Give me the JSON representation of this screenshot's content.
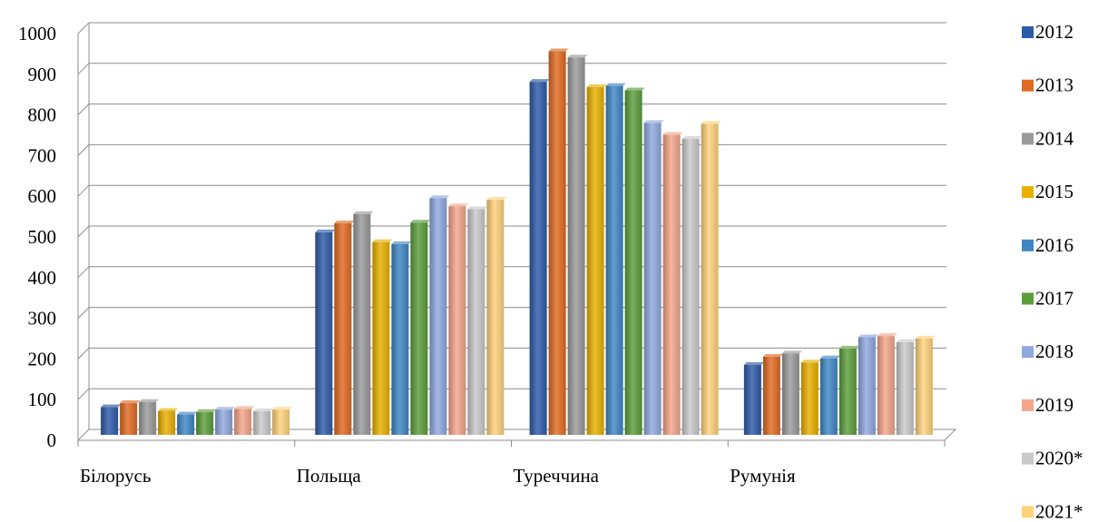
{
  "chart_data": {
    "type": "bar",
    "categories": [
      "Білорусь",
      "Польща",
      "Туреччина",
      "Румунія"
    ],
    "ylim": [
      0,
      1000
    ],
    "yticks": [
      0,
      100,
      200,
      300,
      400,
      500,
      600,
      700,
      800,
      900,
      1000
    ],
    "grid": true,
    "legend_position": "right",
    "series": [
      {
        "name": "2012",
        "color": "#2E5AA8",
        "values": [
          68,
          498,
          868,
          172
        ]
      },
      {
        "name": "2013",
        "color": "#E06A22",
        "values": [
          78,
          520,
          943,
          192
        ]
      },
      {
        "name": "2014",
        "color": "#9A9A9A",
        "values": [
          81,
          543,
          928,
          200
        ]
      },
      {
        "name": "2015",
        "color": "#E8B000",
        "values": [
          59,
          474,
          855,
          178
        ]
      },
      {
        "name": "2016",
        "color": "#3E86C4",
        "values": [
          50,
          469,
          858,
          188
        ]
      },
      {
        "name": "2017",
        "color": "#5B9E3B",
        "values": [
          56,
          522,
          847,
          212
        ]
      },
      {
        "name": "2018",
        "color": "#8FA8DE",
        "values": [
          62,
          582,
          767,
          240
        ]
      },
      {
        "name": "2019",
        "color": "#F4A58A",
        "values": [
          64,
          562,
          738,
          243
        ]
      },
      {
        "name": "2020*",
        "color": "#C9C9C9",
        "values": [
          58,
          555,
          728,
          228
        ]
      },
      {
        "name": "2021*",
        "color": "#FFD27A",
        "values": [
          62,
          578,
          765,
          237
        ]
      }
    ]
  }
}
